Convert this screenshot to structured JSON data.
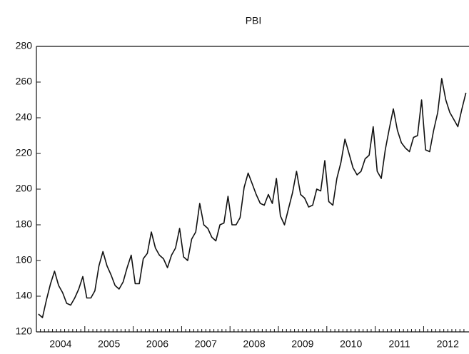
{
  "chart_data": {
    "type": "line",
    "title": "PBI",
    "categories": [
      null,
      null,
      null,
      null,
      null,
      null,
      "2004",
      null,
      null,
      null,
      null,
      null,
      null,
      null,
      null,
      null,
      null,
      null,
      "2005",
      null,
      null,
      null,
      null,
      null,
      null,
      null,
      null,
      null,
      null,
      null,
      "2006",
      null,
      null,
      null,
      null,
      null,
      null,
      null,
      null,
      null,
      null,
      null,
      "2007",
      null,
      null,
      null,
      null,
      null,
      null,
      null,
      null,
      null,
      null,
      null,
      "2008",
      null,
      null,
      null,
      null,
      null,
      null,
      null,
      null,
      null,
      null,
      null,
      "2009",
      null,
      null,
      null,
      null,
      null,
      null,
      null,
      null,
      null,
      null,
      null,
      "2010",
      null,
      null,
      null,
      null,
      null,
      null,
      null,
      null,
      null,
      null,
      null,
      "2011",
      null,
      null,
      null,
      null,
      null,
      null,
      null,
      null,
      null,
      null,
      null,
      "2012",
      null,
      null,
      null,
      null
    ],
    "values": [
      130,
      128,
      138,
      147,
      154,
      146,
      142,
      136,
      135,
      139,
      144,
      151,
      139,
      139,
      143,
      157,
      165,
      157,
      152,
      146,
      144,
      148,
      156,
      163,
      147,
      147,
      161,
      164,
      176,
      167,
      163,
      161,
      156,
      163,
      167,
      178,
      162,
      160,
      172,
      176,
      192,
      180,
      178,
      173,
      171,
      180,
      181,
      196,
      180,
      180,
      184,
      201,
      209,
      203,
      197,
      192,
      191,
      197,
      192,
      206,
      185,
      180,
      189,
      198,
      210,
      197,
      195,
      190,
      191,
      200,
      199,
      216,
      193,
      191,
      206,
      215,
      228,
      220,
      212,
      208,
      210,
      217,
      219,
      235,
      210,
      206,
      222,
      234,
      245,
      233,
      226,
      223,
      221,
      229,
      230,
      250,
      222,
      221,
      233,
      243,
      262,
      250,
      243,
      239,
      235,
      245,
      254
    ],
    "color": "#111111",
    "ylim": [
      120,
      280
    ],
    "yticks": [
      120,
      140,
      160,
      180,
      200,
      220,
      240,
      260,
      280
    ],
    "grid": false
  }
}
